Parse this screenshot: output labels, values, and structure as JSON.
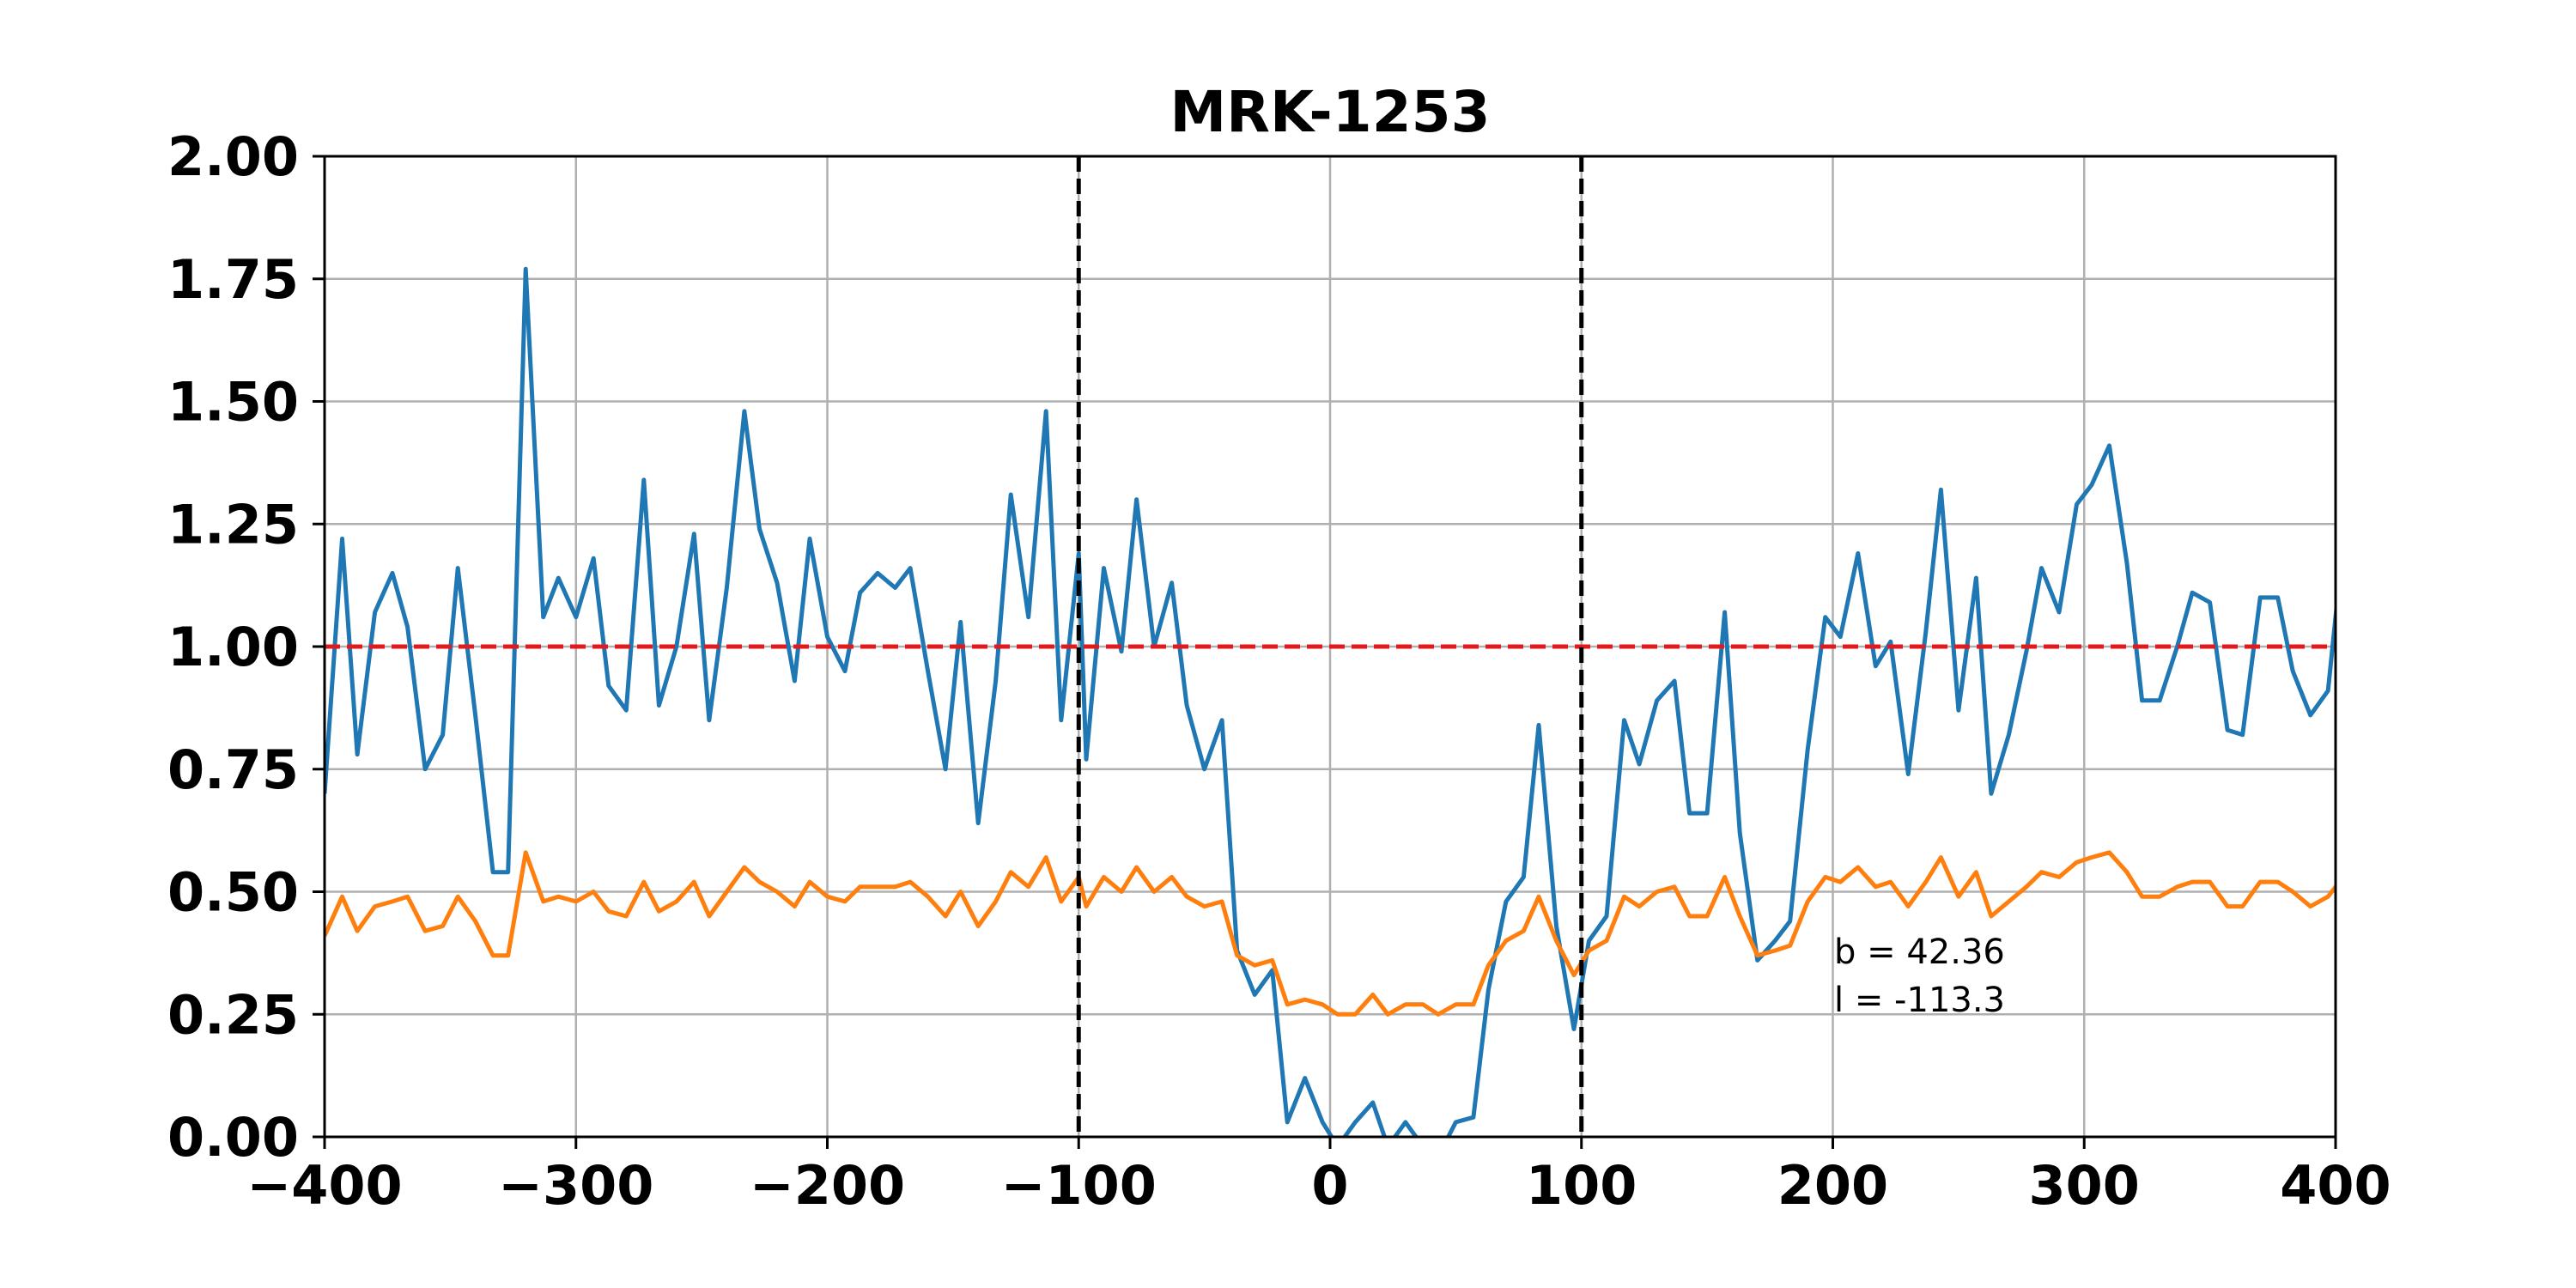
{
  "chart_data": {
    "type": "line",
    "title": "MRK-1253",
    "xlabel": "",
    "ylabel": "",
    "xlim": [
      -400,
      400
    ],
    "ylim": [
      0,
      2
    ],
    "grid": true,
    "x_ticks": [
      -400,
      -300,
      -200,
      -100,
      0,
      100,
      200,
      300,
      400
    ],
    "y_ticks": [
      0.0,
      0.25,
      0.5,
      0.75,
      1.0,
      1.25,
      1.5,
      1.75,
      2.0
    ],
    "x_tick_labels": [
      "−400",
      "−300",
      "−200",
      "−100",
      "0",
      "100",
      "200",
      "300",
      "400"
    ],
    "y_tick_labels": [
      "0.00",
      "0.25",
      "0.50",
      "0.75",
      "1.00",
      "1.25",
      "1.50",
      "1.75",
      "2.00"
    ],
    "reference_lines": [
      {
        "orientation": "horizontal",
        "value": 1.0,
        "color": "#e31a1c",
        "style": "dashed"
      },
      {
        "orientation": "vertical",
        "value": -100,
        "color": "#000000",
        "style": "dashed"
      },
      {
        "orientation": "vertical",
        "value": 100,
        "color": "#000000",
        "style": "dashed"
      }
    ],
    "annotations": [
      "b = 42.36",
      "l = -113.3"
    ],
    "series": [
      {
        "color": "#1f77b4",
        "points": [
          [
            -400,
            0.7
          ],
          [
            -393,
            1.22
          ],
          [
            -387,
            0.78
          ],
          [
            -380,
            1.07
          ],
          [
            -373,
            1.15
          ],
          [
            -367,
            1.04
          ],
          [
            -360,
            0.75
          ],
          [
            -353,
            0.82
          ],
          [
            -347,
            1.16
          ],
          [
            -340,
            0.86
          ],
          [
            -333,
            0.54
          ],
          [
            -327,
            0.54
          ],
          [
            -320,
            1.77
          ],
          [
            -313,
            1.06
          ],
          [
            -307,
            1.14
          ],
          [
            -300,
            1.06
          ],
          [
            -293,
            1.18
          ],
          [
            -287,
            0.92
          ],
          [
            -280,
            0.87
          ],
          [
            -273,
            1.34
          ],
          [
            -267,
            0.88
          ],
          [
            -260,
            1.0
          ],
          [
            -253,
            1.23
          ],
          [
            -247,
            0.85
          ],
          [
            -240,
            1.12
          ],
          [
            -233,
            1.48
          ],
          [
            -227,
            1.24
          ],
          [
            -220,
            1.13
          ],
          [
            -213,
            0.93
          ],
          [
            -207,
            1.22
          ],
          [
            -200,
            1.02
          ],
          [
            -193,
            0.95
          ],
          [
            -187,
            1.11
          ],
          [
            -180,
            1.15
          ],
          [
            -173,
            1.12
          ],
          [
            -167,
            1.16
          ],
          [
            -160,
            0.95
          ],
          [
            -153,
            0.75
          ],
          [
            -147,
            1.05
          ],
          [
            -140,
            0.64
          ],
          [
            -133,
            0.93
          ],
          [
            -127,
            1.31
          ],
          [
            -120,
            1.06
          ],
          [
            -113,
            1.48
          ],
          [
            -107,
            0.85
          ],
          [
            -100,
            1.19
          ],
          [
            -97,
            0.77
          ],
          [
            -90,
            1.16
          ],
          [
            -83,
            0.99
          ],
          [
            -77,
            1.3
          ],
          [
            -70,
            1.0
          ],
          [
            -63,
            1.13
          ],
          [
            -57,
            0.88
          ],
          [
            -50,
            0.75
          ],
          [
            -43,
            0.85
          ],
          [
            -37,
            0.38
          ],
          [
            -30,
            0.29
          ],
          [
            -23,
            0.34
          ],
          [
            -17,
            0.03
          ],
          [
            -10,
            0.12
          ],
          [
            -3,
            0.03
          ],
          [
            3,
            -0.02
          ],
          [
            10,
            0.03
          ],
          [
            17,
            0.07
          ],
          [
            23,
            -0.02
          ],
          [
            30,
            0.03
          ],
          [
            37,
            -0.02
          ],
          [
            43,
            -0.04
          ],
          [
            50,
            0.03
          ],
          [
            57,
            0.04
          ],
          [
            63,
            0.3
          ],
          [
            70,
            0.48
          ],
          [
            77,
            0.53
          ],
          [
            83,
            0.84
          ],
          [
            90,
            0.43
          ],
          [
            97,
            0.22
          ],
          [
            103,
            0.4
          ],
          [
            110,
            0.45
          ],
          [
            117,
            0.85
          ],
          [
            123,
            0.76
          ],
          [
            130,
            0.89
          ],
          [
            137,
            0.93
          ],
          [
            143,
            0.66
          ],
          [
            150,
            0.66
          ],
          [
            157,
            1.07
          ],
          [
            163,
            0.62
          ],
          [
            170,
            0.36
          ],
          [
            177,
            0.4
          ],
          [
            183,
            0.44
          ],
          [
            190,
            0.79
          ],
          [
            197,
            1.06
          ],
          [
            203,
            1.02
          ],
          [
            210,
            1.19
          ],
          [
            217,
            0.96
          ],
          [
            223,
            1.01
          ],
          [
            230,
            0.74
          ],
          [
            237,
            1.03
          ],
          [
            243,
            1.32
          ],
          [
            250,
            0.87
          ],
          [
            257,
            1.14
          ],
          [
            263,
            0.7
          ],
          [
            270,
            0.82
          ],
          [
            277,
            0.99
          ],
          [
            283,
            1.16
          ],
          [
            290,
            1.07
          ],
          [
            297,
            1.29
          ],
          [
            303,
            1.33
          ],
          [
            310,
            1.41
          ],
          [
            317,
            1.17
          ],
          [
            323,
            0.89
          ],
          [
            330,
            0.89
          ],
          [
            337,
            1.0
          ],
          [
            343,
            1.11
          ],
          [
            350,
            1.09
          ],
          [
            357,
            0.83
          ],
          [
            363,
            0.82
          ],
          [
            370,
            1.1
          ],
          [
            377,
            1.1
          ],
          [
            383,
            0.95
          ],
          [
            390,
            0.86
          ],
          [
            397,
            0.91
          ],
          [
            403,
            1.21
          ],
          [
            410,
            1.07
          ]
        ]
      },
      {
        "color": "#ff7f0e",
        "points": [
          [
            -400,
            0.41
          ],
          [
            -393,
            0.49
          ],
          [
            -387,
            0.42
          ],
          [
            -380,
            0.47
          ],
          [
            -373,
            0.48
          ],
          [
            -367,
            0.49
          ],
          [
            -360,
            0.42
          ],
          [
            -353,
            0.43
          ],
          [
            -347,
            0.49
          ],
          [
            -340,
            0.44
          ],
          [
            -333,
            0.37
          ],
          [
            -327,
            0.37
          ],
          [
            -320,
            0.58
          ],
          [
            -313,
            0.48
          ],
          [
            -307,
            0.49
          ],
          [
            -300,
            0.48
          ],
          [
            -293,
            0.5
          ],
          [
            -287,
            0.46
          ],
          [
            -280,
            0.45
          ],
          [
            -273,
            0.52
          ],
          [
            -267,
            0.46
          ],
          [
            -260,
            0.48
          ],
          [
            -253,
            0.52
          ],
          [
            -247,
            0.45
          ],
          [
            -240,
            0.5
          ],
          [
            -233,
            0.55
          ],
          [
            -227,
            0.52
          ],
          [
            -220,
            0.5
          ],
          [
            -213,
            0.47
          ],
          [
            -207,
            0.52
          ],
          [
            -200,
            0.49
          ],
          [
            -193,
            0.48
          ],
          [
            -187,
            0.51
          ],
          [
            -180,
            0.51
          ],
          [
            -173,
            0.51
          ],
          [
            -167,
            0.52
          ],
          [
            -160,
            0.49
          ],
          [
            -153,
            0.45
          ],
          [
            -147,
            0.5
          ],
          [
            -140,
            0.43
          ],
          [
            -133,
            0.48
          ],
          [
            -127,
            0.54
          ],
          [
            -120,
            0.51
          ],
          [
            -113,
            0.57
          ],
          [
            -107,
            0.48
          ],
          [
            -100,
            0.53
          ],
          [
            -97,
            0.47
          ],
          [
            -90,
            0.53
          ],
          [
            -83,
            0.5
          ],
          [
            -77,
            0.55
          ],
          [
            -70,
            0.5
          ],
          [
            -63,
            0.53
          ],
          [
            -57,
            0.49
          ],
          [
            -50,
            0.47
          ],
          [
            -43,
            0.48
          ],
          [
            -37,
            0.37
          ],
          [
            -30,
            0.35
          ],
          [
            -23,
            0.36
          ],
          [
            -17,
            0.27
          ],
          [
            -10,
            0.28
          ],
          [
            -3,
            0.27
          ],
          [
            3,
            0.25
          ],
          [
            10,
            0.25
          ],
          [
            17,
            0.29
          ],
          [
            23,
            0.25
          ],
          [
            30,
            0.27
          ],
          [
            37,
            0.27
          ],
          [
            43,
            0.25
          ],
          [
            50,
            0.27
          ],
          [
            57,
            0.27
          ],
          [
            63,
            0.35
          ],
          [
            70,
            0.4
          ],
          [
            77,
            0.42
          ],
          [
            83,
            0.49
          ],
          [
            90,
            0.4
          ],
          [
            97,
            0.33
          ],
          [
            103,
            0.38
          ],
          [
            110,
            0.4
          ],
          [
            117,
            0.49
          ],
          [
            123,
            0.47
          ],
          [
            130,
            0.5
          ],
          [
            137,
            0.51
          ],
          [
            143,
            0.45
          ],
          [
            150,
            0.45
          ],
          [
            157,
            0.53
          ],
          [
            163,
            0.45
          ],
          [
            170,
            0.37
          ],
          [
            177,
            0.38
          ],
          [
            183,
            0.39
          ],
          [
            190,
            0.48
          ],
          [
            197,
            0.53
          ],
          [
            203,
            0.52
          ],
          [
            210,
            0.55
          ],
          [
            217,
            0.51
          ],
          [
            223,
            0.52
          ],
          [
            230,
            0.47
          ],
          [
            237,
            0.52
          ],
          [
            243,
            0.57
          ],
          [
            250,
            0.49
          ],
          [
            257,
            0.54
          ],
          [
            263,
            0.45
          ],
          [
            270,
            0.48
          ],
          [
            277,
            0.51
          ],
          [
            283,
            0.54
          ],
          [
            290,
            0.53
          ],
          [
            297,
            0.56
          ],
          [
            303,
            0.57
          ],
          [
            310,
            0.58
          ],
          [
            317,
            0.54
          ],
          [
            323,
            0.49
          ],
          [
            330,
            0.49
          ],
          [
            337,
            0.51
          ],
          [
            343,
            0.52
          ],
          [
            350,
            0.52
          ],
          [
            357,
            0.47
          ],
          [
            363,
            0.47
          ],
          [
            370,
            0.52
          ],
          [
            377,
            0.52
          ],
          [
            383,
            0.5
          ],
          [
            390,
            0.47
          ],
          [
            397,
            0.49
          ],
          [
            403,
            0.53
          ],
          [
            410,
            0.51
          ]
        ]
      }
    ]
  }
}
